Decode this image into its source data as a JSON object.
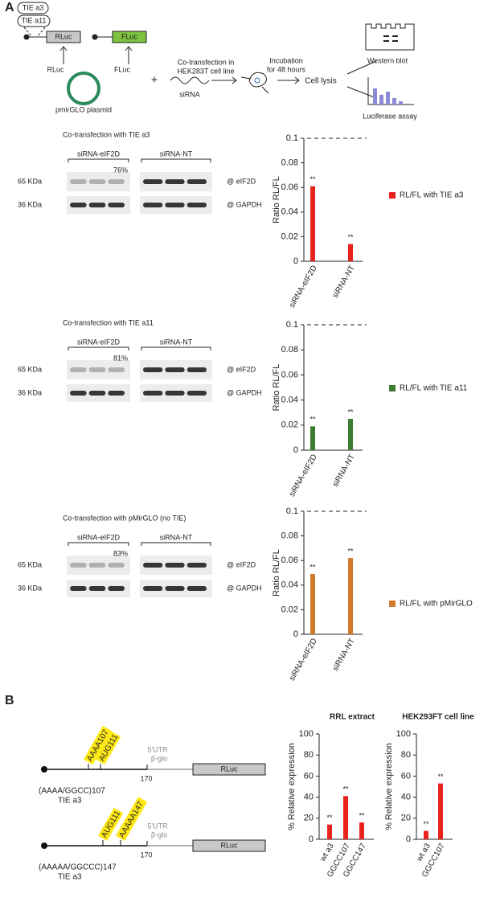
{
  "panel_labels": [
    "A",
    "B"
  ],
  "schematic_a": {
    "tie_labels": [
      "TIE a3",
      "TIE a11"
    ],
    "rluc": "RLuc",
    "fluc": "FLuc",
    "rluc_arrow": "RLuc",
    "fluc_arrow": "FLuc",
    "plasmid": "pmirGLO plasmid",
    "plus": "+",
    "sirna": "siRNA",
    "cotransfection": [
      "Co-transfection in",
      "HEK283T cell line"
    ],
    "incubation": [
      "Incubation",
      "for 48 hours"
    ],
    "lysis": "Cell lysis",
    "western": "Western blot",
    "luciferase": "Luciferase assay"
  },
  "blots": [
    {
      "title": "Co-transfection with TIE a3",
      "groups": [
        "siRNA-eIF2D",
        "siRNA-NT"
      ],
      "knockdown": "76%",
      "markers": [
        "65 KDa",
        "36 KDa"
      ],
      "antibodies": [
        "@ eIF2D",
        "@ GAPDH"
      ]
    },
    {
      "title": "Co-transfection with TIE a11",
      "groups": [
        "siRNA-eIF2D",
        "siRNA-NT"
      ],
      "knockdown": "81%",
      "markers": [
        "65 KDa",
        "36 KDa"
      ],
      "antibodies": [
        "@ eIF2D",
        "@ GAPDH"
      ]
    },
    {
      "title": "Co-transfection with pMirGLO (no TIE)",
      "groups": [
        "siRNA-eIF2D",
        "siRNA-NT"
      ],
      "knockdown": "83%",
      "markers": [
        "65 KDa",
        "36 KDa"
      ],
      "antibodies": [
        "@ eIF2D",
        "@ GAPDH"
      ]
    }
  ],
  "constructs": [
    {
      "sites": [
        "AAAA107",
        "AUG111"
      ],
      "utr": "5'UTR",
      "glo": "β-glo",
      "position": "170",
      "reporter": "RLuc",
      "name": "(AAAA/GGCC)107",
      "tie": "TIE a3"
    },
    {
      "sites": [
        "AUG111",
        "AAAAA147"
      ],
      "utr": "5'UTR",
      "glo": "β-glo",
      "position": "170",
      "reporter": "RLuc",
      "name": "(AAAAA/GGCCC)147",
      "tie": "TIE a3"
    }
  ],
  "chart_data": [
    {
      "type": "bar",
      "ylabel": "Ratio RL/FL",
      "categories": [
        "siRNA-eIF2D",
        "siRNA-NT"
      ],
      "series": [
        {
          "name": "RL/FL with TIE a3",
          "color": "#e8231e",
          "values": [
            0.061,
            0.014
          ]
        }
      ],
      "annotations": [
        "**",
        "**"
      ],
      "ylim": [
        0,
        0.1
      ],
      "yticks": [
        0,
        0.02,
        0.04,
        0.06,
        0.08,
        0.1
      ],
      "dashed_top": true
    },
    {
      "type": "bar",
      "ylabel": "Ratio RL/FL",
      "categories": [
        "siRNA-eIF2D",
        "siRNA-NT"
      ],
      "series": [
        {
          "name": "RL/FL with TIE a11",
          "color": "#3e7b33",
          "values": [
            0.019,
            0.025
          ]
        }
      ],
      "annotations": [
        "**",
        "**"
      ],
      "ylim": [
        0,
        0.1
      ],
      "yticks": [
        0,
        0.02,
        0.04,
        0.06,
        0.08,
        0.1
      ],
      "dashed_top": true
    },
    {
      "type": "bar",
      "ylabel": "Ratio RL/FL",
      "categories": [
        "siRNA-eIF2D",
        "siRNA-NT"
      ],
      "series": [
        {
          "name": "RL/FL with pMirGLO",
          "color": "#d07a2a",
          "values": [
            0.049,
            0.062
          ]
        }
      ],
      "annotations": [
        "**",
        "**"
      ],
      "ylim": [
        0,
        0.1
      ],
      "yticks": [
        0,
        0.02,
        0.04,
        0.06,
        0.08,
        0.1
      ],
      "dashed_top": true
    },
    {
      "type": "bar",
      "title": "RRL extract",
      "ylabel": "% Relative expression",
      "categories": [
        "wt a3",
        "GGCC107",
        "GGCC147"
      ],
      "series": [
        {
          "color": "#e8231e",
          "values": [
            14,
            41,
            16
          ]
        }
      ],
      "annotations": [
        "**",
        "**",
        "**"
      ],
      "ylim": [
        0,
        100
      ],
      "yticks": [
        0,
        20,
        40,
        60,
        80,
        100
      ]
    },
    {
      "type": "bar",
      "title": "HEK293FT cell line",
      "ylabel": "% Relative expression",
      "categories": [
        "wt a3",
        "GGCC107"
      ],
      "series": [
        {
          "color": "#e8231e",
          "values": [
            8,
            53
          ]
        }
      ],
      "annotations": [
        "**",
        "**"
      ],
      "ylim": [
        0,
        100
      ],
      "yticks": [
        0,
        20,
        40,
        60,
        80,
        100
      ]
    }
  ]
}
